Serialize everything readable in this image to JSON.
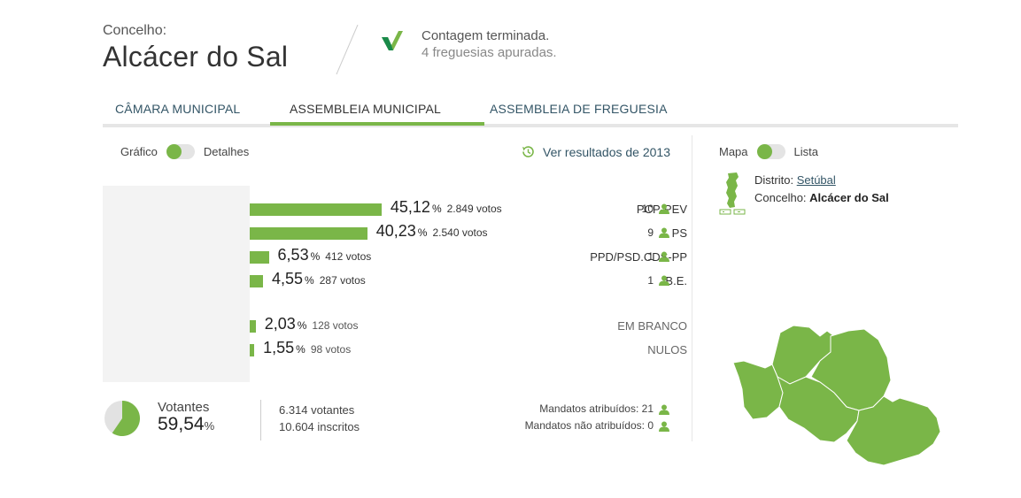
{
  "header": {
    "label": "Concelho:",
    "name": "Alcácer do Sal",
    "status_line1": "Contagem terminada.",
    "status_line2": "4 freguesias apuradas."
  },
  "tabs": [
    {
      "label": "CÂMARA MUNICIPAL",
      "active": false
    },
    {
      "label": "ASSEMBLEIA MUNICIPAL",
      "active": true
    },
    {
      "label": "ASSEMBLEIA DE FREGUESIA",
      "active": false
    }
  ],
  "view_toggle": {
    "left": "Gráfico",
    "right": "Detalhes"
  },
  "previous_results_link": "Ver resultados de 2013",
  "parties": [
    {
      "name": "PCP-PEV",
      "pct": "45,12",
      "votes": "2.849 votos",
      "mandates": "10",
      "fraction": 0.4512
    },
    {
      "name": "PS",
      "pct": "40,23",
      "votes": "2.540 votos",
      "mandates": "9",
      "fraction": 0.4023
    },
    {
      "name": "PPD/PSD.CDS-PP",
      "pct": "6,53",
      "votes": "412 votos",
      "mandates": "1",
      "fraction": 0.0653
    },
    {
      "name": "B.E.",
      "pct": "4,55",
      "votes": "287 votos",
      "mandates": "1",
      "fraction": 0.0455
    }
  ],
  "others": [
    {
      "name": "EM BRANCO",
      "pct": "2,03",
      "votes": "128 votos",
      "fraction": 0.0203
    },
    {
      "name": "NULOS",
      "pct": "1,55",
      "votes": "98 votos",
      "fraction": 0.0155
    }
  ],
  "pct_symbol": "%",
  "turnout": {
    "label": "Votantes",
    "pct": "59,54",
    "fraction": 0.5954,
    "voters": "6.314 votantes",
    "registered": "10.604 inscritos"
  },
  "mandates_summary": {
    "assigned": "Mandatos atribuídos: 21",
    "unassigned": "Mandatos não atribuídos: 0"
  },
  "map_toggle": {
    "left": "Mapa",
    "right": "Lista"
  },
  "district": {
    "district_label": "Distrito:",
    "district_value": "Setúbal",
    "concelho_label": "Concelho:",
    "concelho_value": "Alcácer do Sal"
  },
  "colors": {
    "accent": "#7ab648",
    "pie_empty": "#e2e2e2",
    "map_border": "#ffffff"
  },
  "icons": [
    "check-icon",
    "history-icon",
    "person-icon",
    "portugal-map-icon",
    "parish-map"
  ]
}
